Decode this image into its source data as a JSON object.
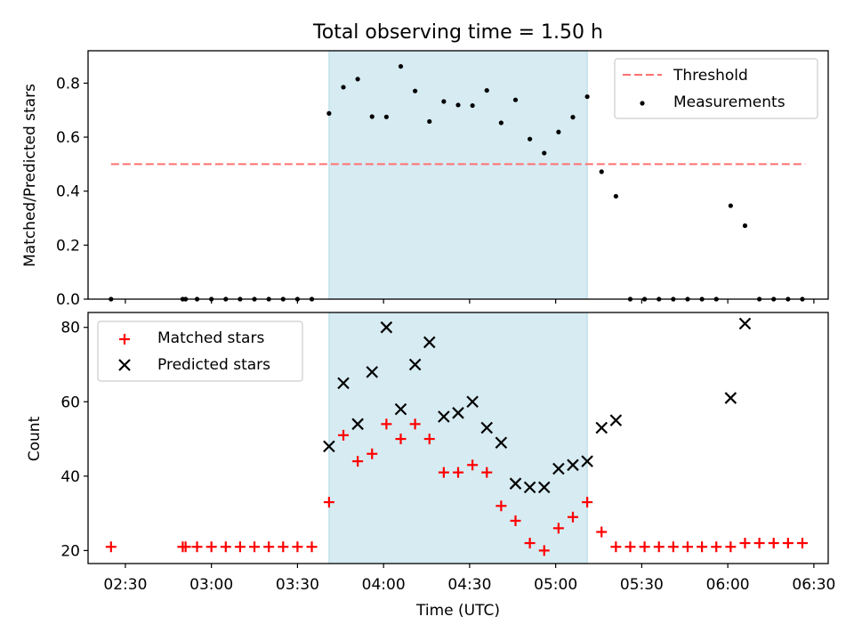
{
  "chart_data": {
    "type": "scatter",
    "title": "Total observing time = 1.50 h",
    "xlabel": "Time (UTC)",
    "x_ticks": [
      "02:30",
      "03:00",
      "03:30",
      "04:00",
      "04:30",
      "05:00",
      "05:30",
      "06:00",
      "06:30"
    ],
    "x_range": [
      "02:17",
      "06:35"
    ],
    "shaded_interval": [
      "03:41",
      "05:11"
    ],
    "shade_color": "#add8e6",
    "panels": [
      {
        "ylabel": "Matched/Predicted stars",
        "ylim": [
          0,
          0.92
        ],
        "y_ticks": [
          "0.0",
          "0.2",
          "0.4",
          "0.6",
          "0.8"
        ],
        "legend_position": "upper right",
        "threshold": {
          "name": "Threshold",
          "value": 0.5,
          "x_start": "02:25",
          "x_end": "06:27",
          "color": "#ff7070",
          "style": "dashed"
        },
        "series": [
          {
            "name": "Measurements",
            "marker": "dot",
            "color": "#000000",
            "x": [
              "02:25",
              "02:50",
              "02:51",
              "02:55",
              "03:00",
              "03:05",
              "03:10",
              "03:15",
              "03:20",
              "03:25",
              "03:30",
              "03:35",
              "03:41",
              "03:46",
              "03:51",
              "03:56",
              "04:01",
              "04:06",
              "04:11",
              "04:16",
              "04:21",
              "04:26",
              "04:31",
              "04:36",
              "04:41",
              "04:46",
              "04:51",
              "04:56",
              "05:01",
              "05:06",
              "05:11",
              "05:16",
              "05:21",
              "05:26",
              "05:31",
              "05:36",
              "05:41",
              "05:46",
              "05:51",
              "05:56",
              "06:01",
              "06:06",
              "06:11",
              "06:16",
              "06:21",
              "06:26"
            ],
            "y": [
              0,
              0,
              0,
              0,
              0,
              0,
              0,
              0,
              0,
              0,
              0,
              0,
              0.688,
              0.785,
              0.815,
              0.676,
              0.675,
              0.862,
              0.771,
              0.658,
              0.732,
              0.719,
              0.717,
              0.773,
              0.653,
              0.738,
              0.593,
              0.541,
              0.619,
              0.674,
              0.75,
              0.472,
              0.381,
              0,
              0,
              0,
              0,
              0,
              0,
              0,
              0.346,
              0.272,
              0,
              0,
              0,
              0
            ]
          }
        ]
      },
      {
        "ylabel": "Count",
        "ylim": [
          16.5,
          84
        ],
        "y_ticks": [
          "20",
          "40",
          "60",
          "80"
        ],
        "legend_position": "upper left",
        "series": [
          {
            "name": "Matched stars",
            "marker": "plus",
            "color": "#ff0000",
            "x": [
              "02:25",
              "02:50",
              "02:51",
              "02:55",
              "03:00",
              "03:05",
              "03:10",
              "03:15",
              "03:20",
              "03:25",
              "03:30",
              "03:35",
              "03:41",
              "03:46",
              "03:51",
              "03:56",
              "04:01",
              "04:06",
              "04:11",
              "04:16",
              "04:21",
              "04:26",
              "04:31",
              "04:36",
              "04:41",
              "04:46",
              "04:51",
              "04:56",
              "05:01",
              "05:06",
              "05:11",
              "05:16",
              "05:21",
              "05:26",
              "05:31",
              "05:36",
              "05:41",
              "05:46",
              "05:51",
              "05:56",
              "06:01",
              "06:06",
              "06:11",
              "06:16",
              "06:21",
              "06:26"
            ],
            "y": [
              21,
              21,
              21,
              21,
              21,
              21,
              21,
              21,
              21,
              21,
              21,
              21,
              33,
              51,
              44,
              46,
              54,
              50,
              54,
              50,
              41,
              41,
              43,
              41,
              32,
              28,
              22,
              20,
              26,
              29,
              33,
              25,
              21,
              21,
              21,
              21,
              21,
              21,
              21,
              21,
              21,
              22,
              22,
              22,
              22,
              22
            ]
          },
          {
            "name": "Predicted stars",
            "marker": "cross",
            "color": "#000000",
            "x": [
              "03:41",
              "03:46",
              "03:51",
              "03:56",
              "04:01",
              "04:06",
              "04:11",
              "04:16",
              "04:21",
              "04:26",
              "04:31",
              "04:36",
              "04:41",
              "04:46",
              "04:51",
              "04:56",
              "05:01",
              "05:06",
              "05:11",
              "05:16",
              "05:21",
              "06:01",
              "06:06"
            ],
            "y": [
              48,
              65,
              54,
              68,
              80,
              58,
              70,
              76,
              56,
              57,
              60,
              53,
              49,
              38,
              37,
              37,
              42,
              43,
              44,
              53,
              55,
              61,
              81
            ]
          }
        ]
      }
    ]
  }
}
